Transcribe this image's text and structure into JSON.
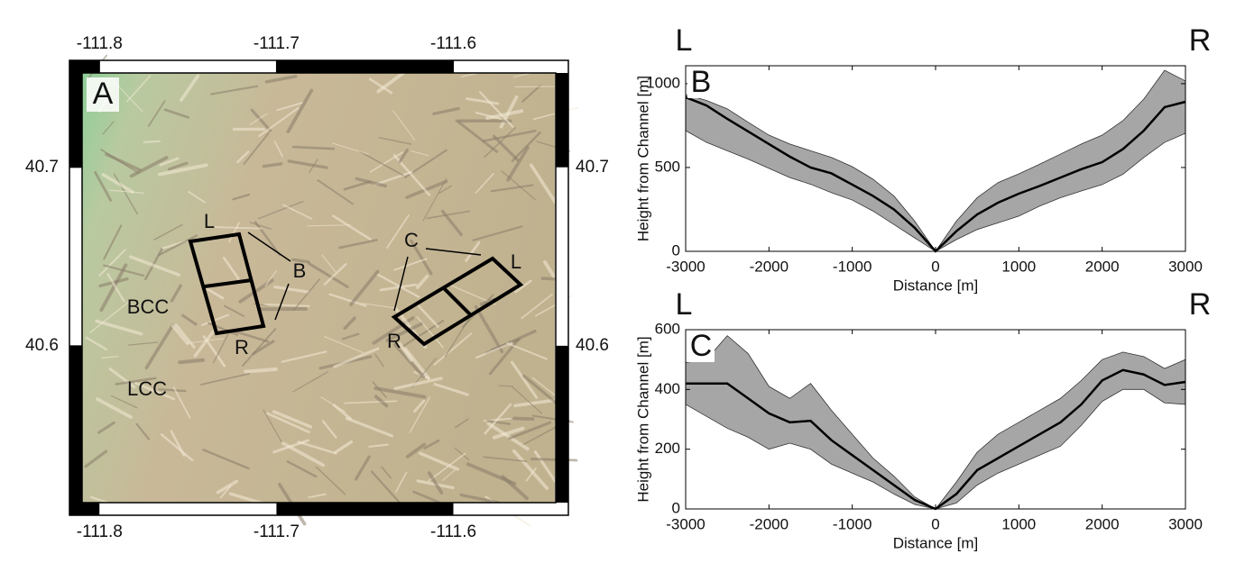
{
  "chart_data": [
    {
      "type": "map",
      "panel_label": "A",
      "xlim": [
        -111.817,
        -111.535
      ],
      "ylim": [
        40.505,
        40.76
      ],
      "xticks": [
        -111.8,
        -111.7,
        -111.6
      ],
      "yticks": [
        40.6,
        40.7
      ],
      "annotations": [
        "L",
        "B",
        "R",
        "C",
        "L",
        "R",
        "BCC",
        "LCC"
      ]
    },
    {
      "type": "line",
      "panel_label": "B",
      "left_label": "L",
      "right_label": "R",
      "xlabel": "Distance [m]",
      "ylabel": "Height from Channel [m]",
      "xlim": [
        -3000,
        3000
      ],
      "ylim": [
        0,
        1107
      ],
      "xticks": [
        -3000,
        -2000,
        -1000,
        0,
        1000,
        2000,
        3000
      ],
      "yticks": [
        0,
        500,
        1000
      ],
      "x": [
        -3000,
        -2750,
        -2500,
        -2250,
        -2000,
        -1750,
        -1500,
        -1250,
        -1000,
        -750,
        -500,
        -250,
        0,
        250,
        500,
        750,
        1000,
        1250,
        1500,
        1750,
        2000,
        2250,
        2500,
        2750,
        3000
      ],
      "color": "#000000",
      "band_color": "#a6a6a6",
      "values": [
        919,
        870,
        790,
        715,
        640,
        565,
        500,
        465,
        398,
        330,
        250,
        140,
        0,
        120,
        220,
        290,
        344,
        390,
        440,
        490,
        532,
        610,
        720,
        860,
        892
      ],
      "band_upper": [
        935,
        900,
        850,
        770,
        693,
        640,
        600,
        560,
        505,
        430,
        330,
        180,
        0,
        180,
        320,
        410,
        462,
        520,
        580,
        640,
        693,
        780,
        908,
        1080,
        1016
      ],
      "band_lower": [
        720,
        650,
        600,
        550,
        495,
        440,
        400,
        350,
        306,
        240,
        160,
        80,
        0,
        70,
        130,
        170,
        210,
        270,
        320,
        360,
        398,
        460,
        560,
        650,
        704
      ]
    },
    {
      "type": "line",
      "panel_label": "C",
      "left_label": "L",
      "right_label": "R",
      "xlabel": "Distance [m]",
      "ylabel": "Height from Channel [m]",
      "xlim": [
        -3000,
        3000
      ],
      "ylim": [
        0,
        600
      ],
      "xticks": [
        -3000,
        -2000,
        -1000,
        0,
        1000,
        2000,
        3000
      ],
      "yticks": [
        0,
        200,
        400,
        600
      ],
      "x": [
        -3000,
        -2750,
        -2500,
        -2250,
        -2000,
        -1750,
        -1500,
        -1250,
        -1000,
        -750,
        -500,
        -250,
        0,
        250,
        500,
        750,
        1000,
        1250,
        1500,
        1750,
        2000,
        2250,
        2500,
        2750,
        3000
      ],
      "color": "#000000",
      "band_color": "#a6a6a6",
      "values": [
        420,
        420,
        420,
        370,
        320,
        290,
        295,
        230,
        180,
        130,
        80,
        30,
        0,
        50,
        130,
        170,
        210,
        250,
        290,
        350,
        430,
        465,
        450,
        415,
        425
      ],
      "band_upper": [
        490,
        500,
        580,
        520,
        410,
        370,
        420,
        330,
        250,
        170,
        110,
        40,
        0,
        90,
        190,
        250,
        290,
        330,
        370,
        430,
        500,
        525,
        510,
        470,
        500
      ],
      "band_lower": [
        350,
        310,
        270,
        240,
        200,
        220,
        200,
        150,
        120,
        90,
        50,
        15,
        0,
        20,
        80,
        120,
        150,
        180,
        210,
        280,
        360,
        400,
        400,
        355,
        350
      ]
    }
  ]
}
